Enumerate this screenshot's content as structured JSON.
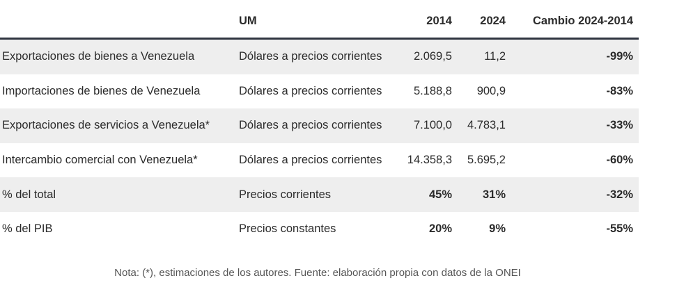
{
  "headers": {
    "concept": "",
    "um": "UM",
    "y2014": "2014",
    "y2024": "2024",
    "change": "Cambio 2024-2014"
  },
  "rows": [
    {
      "concept": "Exportaciones de bienes a Venezuela",
      "um": "Dólares a precios corrientes",
      "y2014": "2.069,5",
      "y2024": "11,2",
      "change": "-99%"
    },
    {
      "concept": "Importaciones de bienes de Venezuela",
      "um": "Dólares a precios corrientes",
      "y2014": "5.188,8",
      "y2024": "900,9",
      "change": "-83%"
    },
    {
      "concept": "Exportaciones de servicios a Venezuela*",
      "um": "Dólares a precios corrientes",
      "y2014": "7.100,0",
      "y2024": "4.783,1",
      "change": "-33%"
    },
    {
      "concept": "Intercambio comercial con Venezuela*",
      "um": "Dólares a precios corrientes",
      "y2014": "14.358,3",
      "y2024": "5.695,2",
      "change": "-60%"
    },
    {
      "concept": "% del total",
      "um": "Precios corrientes",
      "y2014": "45%",
      "y2024": "31%",
      "change": "-32%"
    },
    {
      "concept": "% del PIB",
      "um": "Precios constantes",
      "y2014": "20%",
      "y2024": "9%",
      "change": "-55%"
    }
  ],
  "note": "Nota: (*), estimaciones de los autores. Fuente: elaboración propia con datos de la ONEI",
  "colors": {
    "row_shade": "#eeeeee",
    "header_rule": "#2f3440"
  }
}
